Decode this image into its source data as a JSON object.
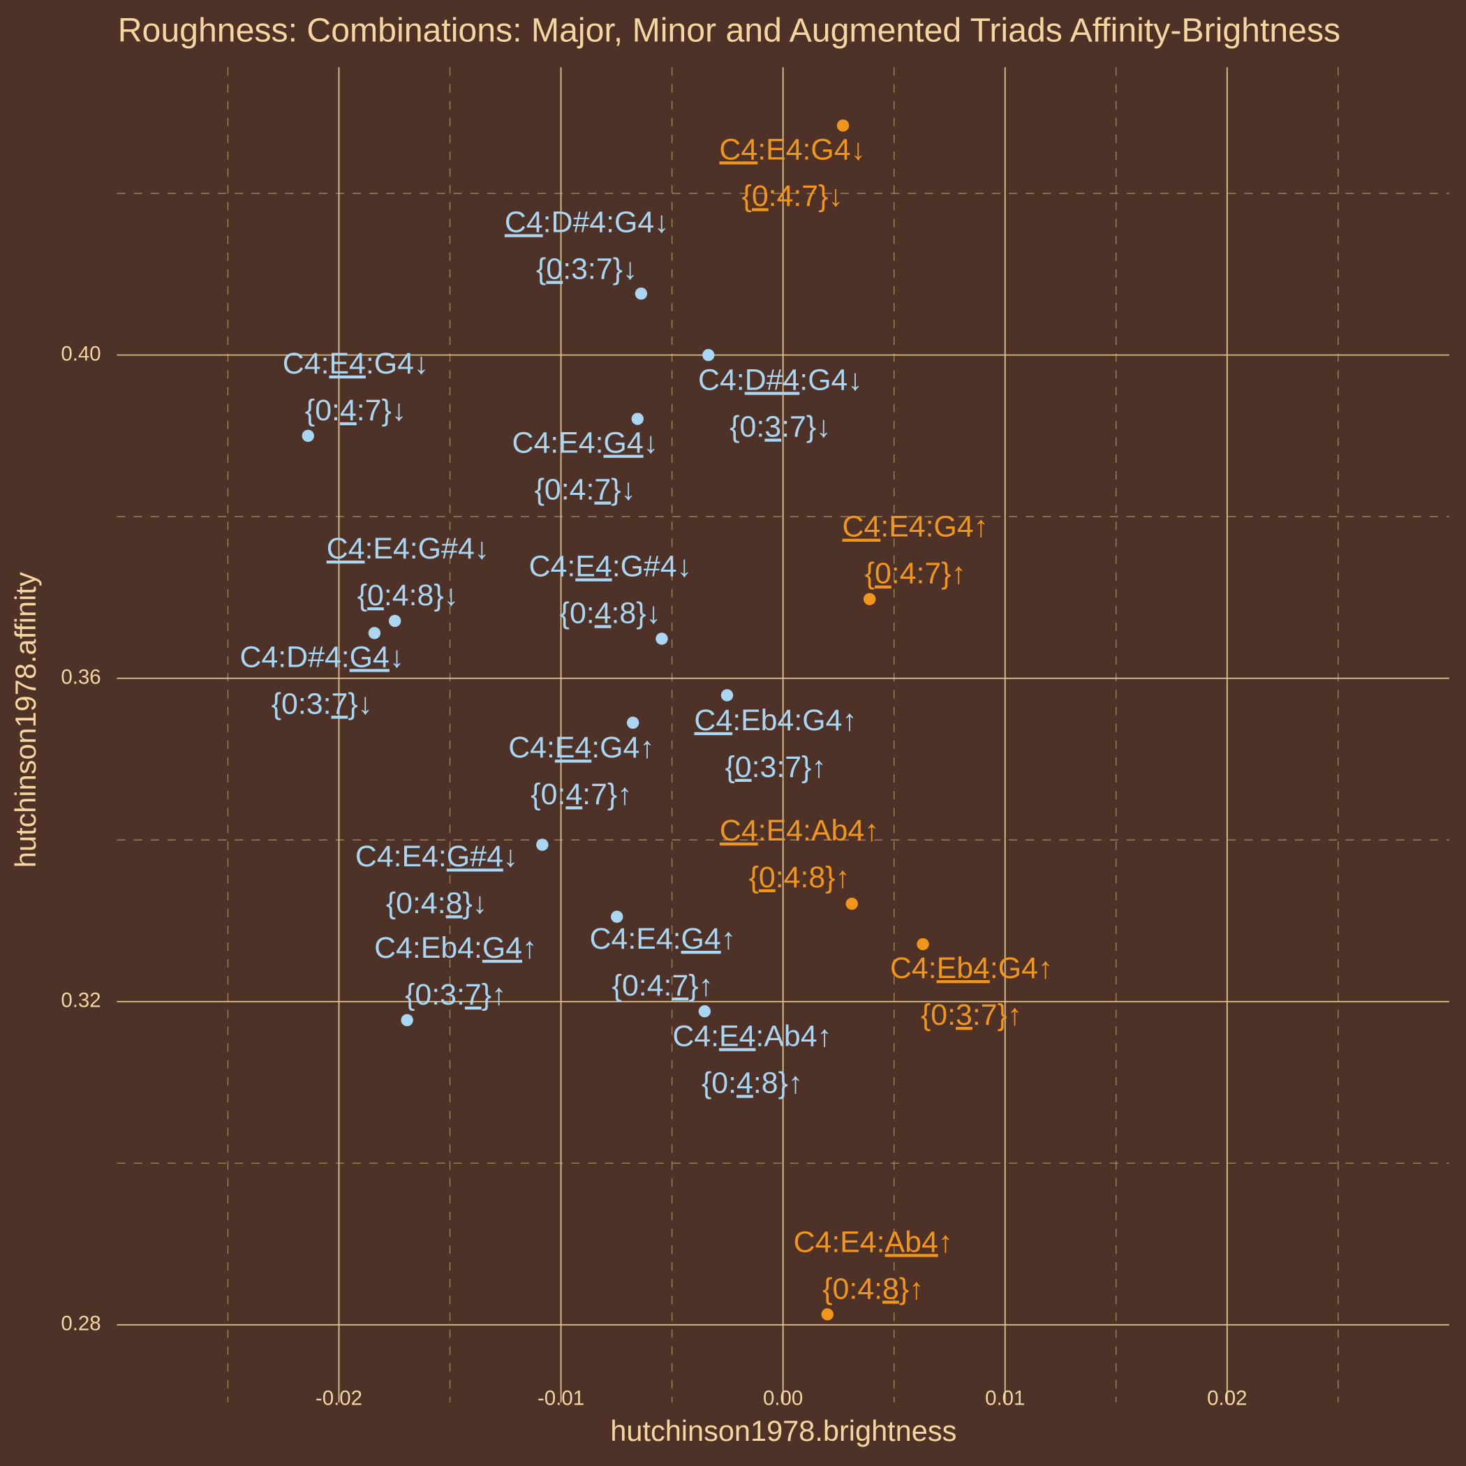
{
  "chart_data": {
    "type": "scatter",
    "title": "Roughness: Combinations: Major, Minor and Augmented Triads Affinity-Brightness",
    "xlabel": "hutchinson1978.brightness",
    "ylabel": "hutchinson1978.affinity",
    "xlim": [
      -0.03,
      0.03
    ],
    "ylim": [
      0.2704,
      0.4356
    ],
    "xticks": [
      -0.02,
      -0.01,
      {
        "value": 0,
        "label": "0.00"
      },
      0.01,
      0.02
    ],
    "yticks": [
      0.28,
      0.32,
      0.36,
      {
        "value": 0.4,
        "label": "0.40"
      }
    ],
    "grid": true,
    "series": [
      {
        "color": "#f0961a",
        "x": [
          0.0027,
          0.0039,
          0.0031,
          0.0063,
          0.002
        ],
        "y": [
          0.4284,
          0.3698,
          0.3321,
          0.3271,
          0.2813
        ],
        "labels": [
          [
            "C4",
            ":E4:G4↓"
          ],
          [
            "C4",
            ":E4:G4↑"
          ],
          [
            "C4",
            ":E4:Ab4↑"
          ],
          [
            "C4:",
            "Eb4",
            ":G4↑"
          ],
          [
            "C4:E4:",
            "Ab4",
            "↑"
          ]
        ],
        "label_u": [
          0,
          0,
          0,
          1,
          1
        ],
        "sublabels": [
          [
            "{",
            "0",
            ":4:7}↓"
          ],
          [
            "{",
            "0",
            ":4:7}↑"
          ],
          [
            "{",
            "0",
            ":4:8}↑"
          ],
          [
            "{0:",
            "3",
            ":7}↑"
          ],
          [
            "{0:4:",
            "8",
            "}↑"
          ]
        ],
        "sublabel_u": [
          1,
          1,
          1,
          1,
          1
        ]
      },
      {
        "color": "#a9d6f2",
        "x": [
          -0.00639,
          -0.00336,
          -0.02139,
          -0.00655,
          -0.01748,
          -0.0184,
          -0.00546,
          -0.00252,
          -0.00676,
          -0.01084,
          -0.00748,
          -0.01693,
          -0.00353
        ],
        "y": [
          0.4076,
          0.4,
          0.39,
          0.3921,
          0.3671,
          0.3656,
          0.3649,
          0.3579,
          0.3545,
          0.3394,
          0.3305,
          0.3177,
          0.3188
        ],
        "labels": [
          [
            "C4",
            ":D#4:G4↓"
          ],
          [
            "C4:",
            "D#4",
            ":G4↓"
          ],
          [
            "C4:",
            "E4",
            ":G4↓"
          ],
          [
            "C4:E4:",
            "G4",
            "↓"
          ],
          [
            "C4",
            ":E4:G#4↓"
          ],
          [
            "C4:D#4:",
            "G4",
            "↓"
          ],
          [
            "C4:",
            "E4",
            ":G#4↓"
          ],
          [
            "C4",
            ":Eb4:G4↑"
          ],
          [
            "C4:",
            "E4",
            ":G4↑"
          ],
          [
            "C4:E4:",
            "G#4",
            "↓"
          ],
          [
            "C4:E4:",
            "G4",
            "↑"
          ],
          [
            "C4:Eb4:",
            "G4",
            "↑"
          ],
          [
            "C4:",
            "E4",
            ":Ab4↑"
          ]
        ],
        "label_u": [
          0,
          1,
          1,
          1,
          0,
          1,
          1,
          0,
          1,
          1,
          1,
          1,
          1
        ],
        "sublabels": [
          [
            "{",
            "0",
            ":3:7}↓"
          ],
          [
            "{0:",
            "3",
            ":7}↓"
          ],
          [
            "{0:",
            "4",
            ":7}↓"
          ],
          [
            "{0:4:",
            "7",
            "}↓"
          ],
          [
            "{",
            "0",
            ":4:8}↓"
          ],
          [
            "{0:3:",
            "7",
            "}↓"
          ],
          [
            "{0:",
            "4",
            ":8}↓"
          ],
          [
            "{",
            "0",
            ":3:7}↑"
          ],
          [
            "{0:",
            "4",
            ":7}↑"
          ],
          [
            "{0:4:",
            "8",
            "}↓"
          ],
          [
            "{0:4:",
            "7",
            "}↑"
          ],
          [
            "{0:3:",
            "7",
            "}↑"
          ],
          [
            "{0:",
            "4",
            ":8}↑"
          ]
        ],
        "sublabel_u": [
          1,
          1,
          1,
          1,
          1,
          1,
          1,
          1,
          1,
          1,
          1,
          1,
          1
        ]
      }
    ]
  }
}
